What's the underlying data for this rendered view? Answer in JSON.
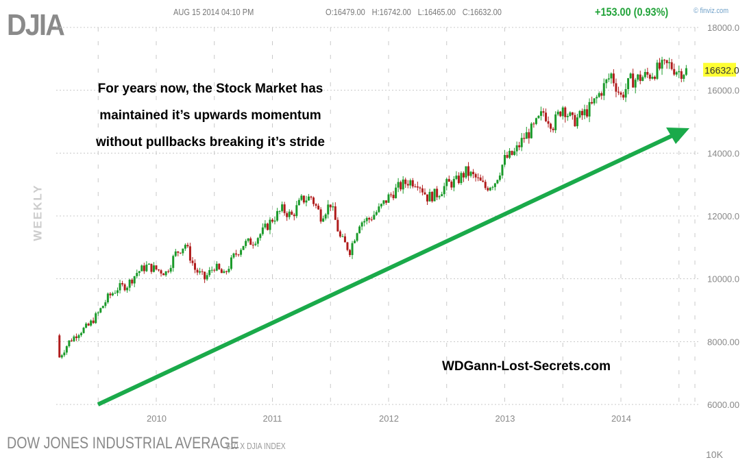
{
  "header": {
    "ticker": "DJIA",
    "datetime": "AUG 15 2014 04:10 PM",
    "ohlc": "O:16479.00  H:16742.00  L:16465.00  C:16632.00",
    "change": "+153.00 (0.93%)",
    "brand": "© finviz.com"
  },
  "side_label": "WEEKLY",
  "annotations": {
    "note_lines": [
      "For years now, the Stock Market has",
      "maintained it’s upwards momentum",
      "without pullbacks breaking it’s stride"
    ],
    "credit": "WDGann-Lost-Secrets.com",
    "arrow_color": "#1aaa4a"
  },
  "footer": {
    "title": "DOW JONES INDUSTRIAL AVERAGE",
    "subtitle": "$10 X DJIA INDEX",
    "lower_panel_tick": "10K"
  },
  "colors": {
    "up": "#1a9a2a",
    "down": "#b01c1c",
    "last_price_bg": "#ffff33",
    "grid": "#c8c8c8"
  },
  "chart_data": {
    "type": "candlestick",
    "interval": "weekly",
    "title": "DJIA",
    "ylim": [
      6000,
      18000
    ],
    "yticks": [
      "18000.0",
      "16000.0",
      "14000.0",
      "12000.0",
      "10000.0",
      "8000.00",
      "6000.00"
    ],
    "xticks": [
      "2010",
      "2011",
      "2012",
      "2013",
      "2014"
    ],
    "last_price": "16632.0",
    "grid": true,
    "monthly_closes": {
      "start": "2009-03",
      "values": [
        7500,
        8000,
        8300,
        8500,
        8900,
        9400,
        9700,
        9800,
        10200,
        10400,
        10300,
        10200,
        10800,
        11100,
        10300,
        10000,
        10400,
        10100,
        10700,
        11100,
        11200,
        11500,
        11900,
        12200,
        12000,
        12500,
        12600,
        12000,
        12400,
        11300,
        10900,
        11800,
        11900,
        12200,
        12600,
        12900,
        13100,
        13100,
        12600,
        12700,
        13000,
        13100,
        13400,
        13200,
        12900,
        13100,
        13800,
        14000,
        14500,
        14800,
        15300,
        14900,
        15500,
        15000,
        15200,
        15500,
        16000,
        16500,
        15800,
        16300,
        16400,
        16500,
        16700,
        16800,
        16600,
        16632
      ]
    }
  }
}
